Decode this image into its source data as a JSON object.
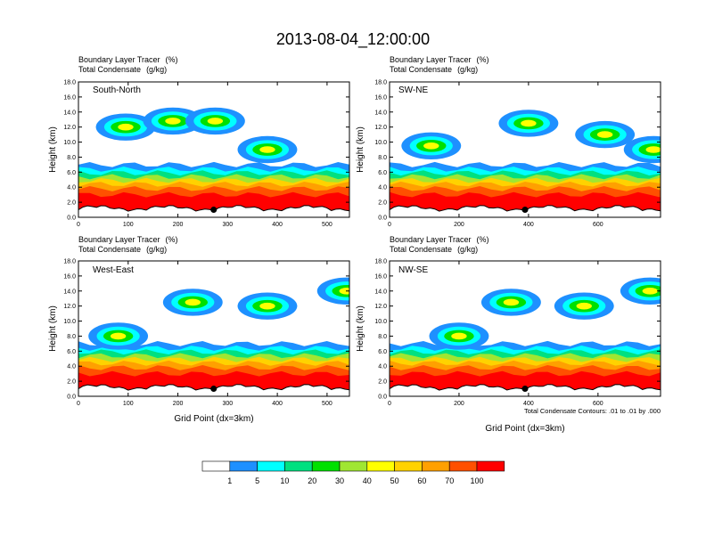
{
  "title": "2013-08-04_12:00:00",
  "panel_common": {
    "subtitle_line1": "Boundary Layer Tracer",
    "subtitle_unit1": "(%)",
    "subtitle_line2": "Total Condensate",
    "subtitle_unit2": "(g/kg)",
    "ylabel": "Height (km)",
    "xlabel": "Grid Point (dx=3km)"
  },
  "contour_note": "Total Condensate Contours: .01 to .01 by .000",
  "colors": {
    "c0": "#ffffff",
    "c1": "#1e90ff",
    "c5": "#00ffff",
    "c10": "#00e080",
    "c20": "#00e000",
    "c30": "#a0e632",
    "c40": "#ffff00",
    "c50": "#ffd200",
    "c60": "#ffa000",
    "c70": "#ff5000",
    "c100": "#ff0000",
    "terrain": "#000000",
    "marker": "#000000"
  },
  "chart_data": [
    {
      "type": "heatmap",
      "name": "South-North",
      "yticks": [
        "0.0",
        "2.0",
        "4.0",
        "6.0",
        "8.0",
        "10.0",
        "12.0",
        "14.0",
        "16.0",
        "18.0"
      ],
      "xticks": [
        "0",
        "100",
        "200",
        "300",
        "400",
        "500"
      ],
      "xlim": [
        0,
        545
      ],
      "ylim": [
        0,
        18
      ],
      "ylabel": "Height (km)",
      "marker_x": 272,
      "marker_y": 1.0,
      "cloud": [
        [
          95,
          12.0
        ],
        [
          190,
          12.8
        ],
        [
          275,
          12.8
        ],
        [
          380,
          9.0
        ]
      ]
    },
    {
      "type": "heatmap",
      "name": "SW-NE",
      "yticks": [
        "0.0",
        "2.0",
        "4.0",
        "6.0",
        "8.0",
        "10.0",
        "12.0",
        "14.0",
        "16.0",
        "18.0"
      ],
      "xticks": [
        "0",
        "200",
        "400",
        "600"
      ],
      "xlim": [
        0,
        780
      ],
      "ylim": [
        0,
        18
      ],
      "ylabel": "Height (km)",
      "marker_x": 390,
      "marker_y": 1.0,
      "cloud": [
        [
          120,
          9.5
        ],
        [
          400,
          12.5
        ],
        [
          620,
          11.0
        ],
        [
          760,
          9.0
        ]
      ]
    },
    {
      "type": "heatmap",
      "name": "West-East",
      "yticks": [
        "0.0",
        "2.0",
        "4.0",
        "6.0",
        "8.0",
        "10.0",
        "12.0",
        "14.0",
        "16.0",
        "18.0"
      ],
      "xticks": [
        "0",
        "100",
        "200",
        "300",
        "400",
        "500"
      ],
      "xlim": [
        0,
        545
      ],
      "ylim": [
        0,
        18
      ],
      "ylabel": "Height (km)",
      "xlabel": "Grid Point (dx=3km)",
      "marker_x": 272,
      "marker_y": 1.0,
      "cloud": [
        [
          80,
          8.0
        ],
        [
          230,
          12.5
        ],
        [
          380,
          12.0
        ],
        [
          540,
          14.0
        ]
      ]
    },
    {
      "type": "heatmap",
      "name": "NW-SE",
      "yticks": [
        "0.0",
        "2.0",
        "4.0",
        "6.0",
        "8.0",
        "10.0",
        "12.0",
        "14.0",
        "16.0",
        "18.0"
      ],
      "xticks": [
        "0",
        "200",
        "400",
        "600"
      ],
      "xlim": [
        0,
        780
      ],
      "ylim": [
        0,
        18
      ],
      "ylabel": "Height (km)",
      "xlabel": "Grid Point (dx=3km)",
      "marker_x": 390,
      "marker_y": 1.0,
      "cloud": [
        [
          200,
          8.0
        ],
        [
          350,
          12.5
        ],
        [
          560,
          12.0
        ],
        [
          750,
          14.0
        ]
      ]
    },
    {
      "type": "colorbar",
      "levels": [
        "1",
        "5",
        "10",
        "20",
        "30",
        "40",
        "50",
        "60",
        "70",
        "100"
      ]
    }
  ]
}
